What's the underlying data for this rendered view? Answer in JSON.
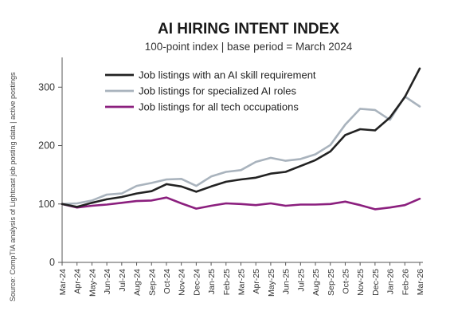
{
  "chart_data": {
    "type": "line",
    "title": "AI HIRING INTENT INDEX",
    "subtitle": "100-point index | base period = March 2024",
    "source": "Source: CompTIA analysis of Lightcast job posting data | active postings",
    "ylim": [
      0,
      340
    ],
    "yticks": [
      0,
      100,
      200,
      300
    ],
    "grid": false,
    "legend_position": "top-left",
    "categories": [
      "Mar-24",
      "Apr-24",
      "May-24",
      "Jun-24",
      "Jul-24",
      "Aug-24",
      "Sep-24",
      "Oct-24",
      "Nov-24",
      "Dec-24",
      "Jan-25",
      "Feb-25",
      "Mar-25",
      "Apr-25",
      "May-25",
      "Jun-25",
      "Jul-25",
      "Aug-25",
      "Sep-25",
      "Oct-25",
      "Nov-25",
      "Dec-25",
      "Jan-26",
      "Feb-26",
      "Mar-26"
    ],
    "series": [
      {
        "name": "Job listings with an AI skill requirement",
        "color": "#222222",
        "values": [
          100,
          95,
          102,
          108,
          112,
          118,
          122,
          134,
          130,
          121,
          130,
          138,
          142,
          145,
          152,
          155,
          165,
          175,
          190,
          218,
          228,
          226,
          248,
          283,
          332
        ]
      },
      {
        "name": "Job listings for specialized AI roles",
        "color": "#a9b3bd",
        "values": [
          100,
          101,
          106,
          116,
          118,
          131,
          136,
          142,
          143,
          131,
          147,
          155,
          158,
          172,
          179,
          174,
          177,
          185,
          201,
          236,
          263,
          261,
          244,
          284,
          267
        ]
      },
      {
        "name": "Job listings for all tech occupations",
        "color": "#8b1f7e",
        "values": [
          100,
          94,
          97,
          99,
          102,
          105,
          106,
          111,
          101,
          92,
          97,
          101,
          100,
          98,
          101,
          97,
          99,
          99,
          100,
          104,
          98,
          91,
          94,
          98,
          109
        ]
      }
    ]
  }
}
